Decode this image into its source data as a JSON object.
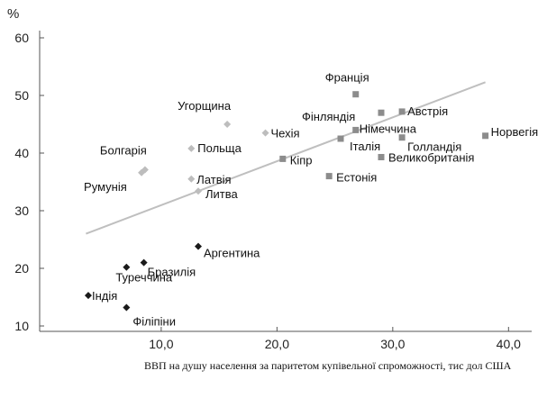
{
  "chart_data": {
    "type": "scatter",
    "title": "",
    "ylabel": "%",
    "xlabel": "ВВП на душу населення за паритетом купівельної спроможності, тис дол США",
    "xlim": [
      0,
      42
    ],
    "ylim": [
      10,
      60
    ],
    "xticks": [
      10,
      20,
      30,
      40
    ],
    "xtick_labels": [
      "10,0",
      "20,0",
      "30,0",
      "40,0"
    ],
    "yticks": [
      10,
      20,
      30,
      40,
      50,
      60
    ],
    "ytick_labels": [
      "10",
      "20",
      "30",
      "40",
      "50",
      "60"
    ],
    "grid": false,
    "legend": "none",
    "colors": {
      "diamond_dark": "#1a1a1a",
      "diamond_light": "#bdbdbd",
      "square_gray": "#8c8c8c",
      "trend": "#bfbfbf",
      "axis": "#555555"
    },
    "trendline": {
      "x": [
        3.5,
        38.0
      ],
      "y": [
        26.0,
        52.3
      ]
    },
    "series": [
      {
        "marker": "diamond_dark",
        "points": [
          {
            "label": "Індія",
            "x": 3.7,
            "y": 15.3
          },
          {
            "label": "Філіпіни",
            "x": 7.0,
            "y": 13.2
          },
          {
            "label": "Туреччина",
            "x": 7.0,
            "y": 20.2
          },
          {
            "label": "Бразилія",
            "x": 8.5,
            "y": 21.0
          },
          {
            "label": "Аргентина",
            "x": 13.2,
            "y": 23.8
          }
        ]
      },
      {
        "marker": "diamond_light",
        "points": [
          {
            "label": "Румунія",
            "x": 8.3,
            "y": 36.6
          },
          {
            "label": "Болгарія",
            "x": 8.6,
            "y": 37.1
          },
          {
            "label": "Латвія",
            "x": 12.6,
            "y": 35.5
          },
          {
            "label": "Литва",
            "x": 13.2,
            "y": 33.4
          },
          {
            "label": "Польща",
            "x": 12.6,
            "y": 40.8
          },
          {
            "label": "Угорщина",
            "x": 15.7,
            "y": 45.0
          },
          {
            "label": "Чехія",
            "x": 19.0,
            "y": 43.5
          }
        ]
      },
      {
        "marker": "square_gray",
        "points": [
          {
            "label": "Кіпр",
            "x": 20.5,
            "y": 39.0
          },
          {
            "label": "Естонія",
            "x": 24.5,
            "y": 36.0
          },
          {
            "label": "Італія",
            "x": 25.5,
            "y": 42.5
          },
          {
            "label": "Німеччина",
            "x": 26.8,
            "y": 44.0
          },
          {
            "label": "Франція",
            "x": 26.8,
            "y": 50.2
          },
          {
            "label": "Фінляндія",
            "x": 29.0,
            "y": 47.0
          },
          {
            "label": "Австрія",
            "x": 30.8,
            "y": 47.2
          },
          {
            "label": "Голландія",
            "x": 30.8,
            "y": 42.7
          },
          {
            "label": "Великобританія",
            "x": 29.0,
            "y": 39.3
          },
          {
            "label": "Норвегія",
            "x": 38.0,
            "y": 43.0
          }
        ]
      }
    ]
  }
}
